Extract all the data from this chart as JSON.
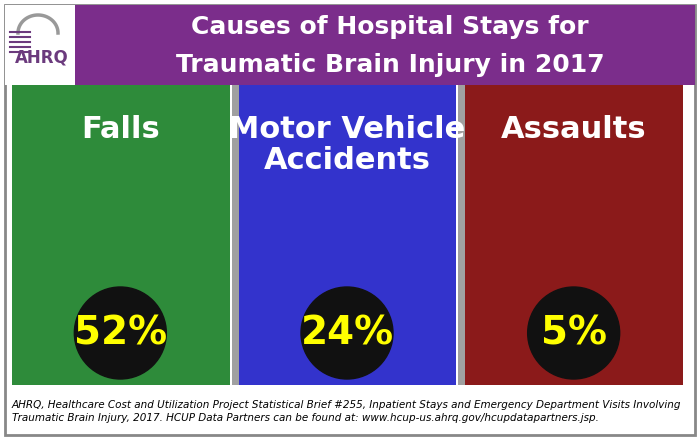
{
  "title_line1": "Causes of Hospital Stays for",
  "title_line2": "Traumatic Brain Injury in 2017",
  "title_bg_color": "#7B2D8B",
  "title_text_color": "#FFFFFF",
  "bg_color": "#FFFFFF",
  "panel_colors": [
    "#2E8B3A",
    "#3333CC",
    "#8B1A1A"
  ],
  "panel_labels": [
    "Falls",
    "Motor Vehicle\nAccidents",
    "Assaults"
  ],
  "panel_percentages": [
    "52%",
    "24%",
    "5%"
  ],
  "label_text_color": "#FFFFFF",
  "pct_text_color": "#FFFF00",
  "circle_color": "#111111",
  "footer_line1": "AHRQ, Healthcare Cost and Utilization Project Statistical Brief #255, Inpatient Stays and Emergency Department Visits Involving",
  "footer_line2": "Traumatic Brain Injury, 2017. HCUP Data Partners can be found at: www.hcup-us.ahrq.gov/hcupdatapartners.jsp.",
  "footer_fontsize": 7.5,
  "label_fontsize": 22,
  "pct_fontsize": 28,
  "separator_color": "#A0A0A0",
  "outer_border_color": "#888888"
}
